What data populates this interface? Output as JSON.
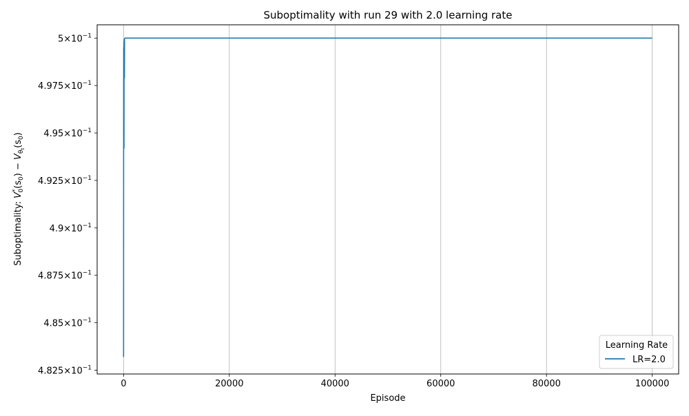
{
  "chart_data": {
    "type": "line",
    "title": "Suboptimality with run 29 with 2.0 learning rate",
    "xlabel": "Episode",
    "ylabel": {
      "prefix": "Suboptimality: ",
      "v_star": "V",
      "v_star_sub": "0",
      "v_star_sup": "*",
      "s0_a": "(s",
      "s0_a_sub": "0",
      "minus": ") − ",
      "v_theta": "V",
      "v_theta_sub": "θ",
      "v_theta_subsub": "t",
      "s0_b": "(s",
      "s0_b_sub": "0",
      "close": ")"
    },
    "xlim": [
      -5000,
      105000
    ],
    "ylim": [
      0.4823,
      0.5007
    ],
    "xticks": [
      {
        "value": 0,
        "label": "0"
      },
      {
        "value": 20000,
        "label": "20000"
      },
      {
        "value": 40000,
        "label": "40000"
      },
      {
        "value": 60000,
        "label": "60000"
      },
      {
        "value": 80000,
        "label": "80000"
      },
      {
        "value": 100000,
        "label": "100000"
      }
    ],
    "yticks": [
      {
        "value": 0.5,
        "mantissa": "5",
        "times": "×",
        "base": "10",
        "exp": "−1"
      },
      {
        "value": 0.4975,
        "mantissa": "4.975",
        "times": "×",
        "base": "10",
        "exp": "−1"
      },
      {
        "value": 0.495,
        "mantissa": "4.95",
        "times": "×",
        "base": "10",
        "exp": "−1"
      },
      {
        "value": 0.4925,
        "mantissa": "4.925",
        "times": "×",
        "base": "10",
        "exp": "−1"
      },
      {
        "value": 0.49,
        "mantissa": "4.9",
        "times": "×",
        "base": "10",
        "exp": "−1"
      },
      {
        "value": 0.4875,
        "mantissa": "4.875",
        "times": "×",
        "base": "10",
        "exp": "−1"
      },
      {
        "value": 0.485,
        "mantissa": "4.85",
        "times": "×",
        "base": "10",
        "exp": "−1"
      },
      {
        "value": 0.4825,
        "mantissa": "4.825",
        "times": "×",
        "base": "10",
        "exp": "−1"
      }
    ],
    "grid": "x-axis only",
    "legend": {
      "title": "Learning Rate",
      "placement": "bottom-right"
    },
    "series": [
      {
        "name": "LR=2.0",
        "color": "#1f77b4",
        "x": [
          0,
          10,
          20,
          40,
          60,
          80,
          100,
          120,
          140,
          160,
          180,
          200,
          250,
          300,
          400,
          600,
          1000,
          2000,
          5000,
          10000,
          20000,
          40000,
          60000,
          80000,
          100000
        ],
        "y": [
          0.4832,
          0.4945,
          0.4995,
          0.4978,
          0.4998,
          0.4942,
          0.4997,
          0.4999,
          0.49995,
          0.4979,
          0.49995,
          0.49998,
          0.49999,
          0.5,
          0.5,
          0.5,
          0.5,
          0.5,
          0.5,
          0.5,
          0.5,
          0.5,
          0.5,
          0.5,
          0.5
        ]
      }
    ]
  }
}
